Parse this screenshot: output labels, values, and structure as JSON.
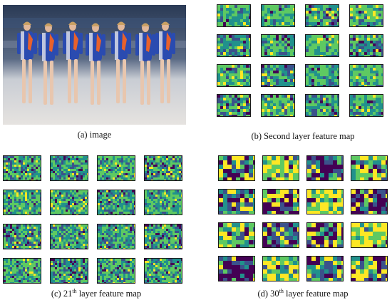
{
  "captions": {
    "a": "(a) image",
    "b": "(b) Second layer feature map",
    "c_prefix": "(c) 21",
    "c_sup": "th",
    "c_suffix": " layer feature map",
    "d_prefix": "(d) 30",
    "d_sup": "th",
    "d_suffix": " layer feature map"
  },
  "palette": {
    "viridis": [
      "#440154",
      "#3b528b",
      "#21918c",
      "#5ec962",
      "#fde725"
    ],
    "background": "#ffffff",
    "frame": "#1a1a1a"
  },
  "grids": [
    {
      "id": "b",
      "rows": 4,
      "cols": 4,
      "style": "mid"
    },
    {
      "id": "c",
      "rows": 4,
      "cols": 4,
      "style": "fine"
    },
    {
      "id": "d",
      "rows": 4,
      "cols": 4,
      "style": "coarse"
    }
  ]
}
